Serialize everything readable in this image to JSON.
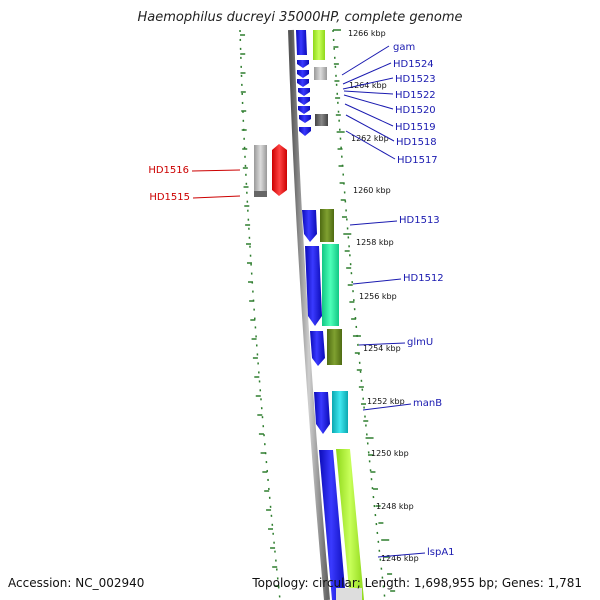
{
  "title": "Haemophilus ducreyi 35000HP, complete genome",
  "accession": "Accession: NC_002940",
  "summary": "Topology: circular; Length: 1,698,955 bp; Genes: 1,781",
  "colors": {
    "forward": "#1a1aee",
    "reverse_red": "#ee1111",
    "label_blue": "#1a1ab0",
    "label_red": "#cc0000",
    "tick": "#2e7d2e",
    "backbone": "#888888"
  },
  "kbp_labels": [
    "1266 kbp",
    "1264 kbp",
    "1262 kbp",
    "1260 kbp",
    "1258 kbp",
    "1256 kbp",
    "1254 kbp",
    "1252 kbp",
    "1250 kbp",
    "1248 kbp",
    "1246 kbp"
  ],
  "gene_labels": [
    {
      "text": "gam",
      "color": "blue"
    },
    {
      "text": "HD1524",
      "color": "blue"
    },
    {
      "text": "HD1523",
      "color": "blue"
    },
    {
      "text": "HD1522",
      "color": "blue"
    },
    {
      "text": "HD1520",
      "color": "blue"
    },
    {
      "text": "HD1519",
      "color": "blue"
    },
    {
      "text": "HD1518",
      "color": "blue"
    },
    {
      "text": "HD1517",
      "color": "blue"
    },
    {
      "text": "HD1516",
      "color": "red"
    },
    {
      "text": "HD1515",
      "color": "red"
    },
    {
      "text": "HD1513",
      "color": "blue"
    },
    {
      "text": "HD1512",
      "color": "blue"
    },
    {
      "text": "glmU",
      "color": "blue"
    },
    {
      "text": "manB",
      "color": "blue"
    },
    {
      "text": "lspA1",
      "color": "blue"
    }
  ]
}
